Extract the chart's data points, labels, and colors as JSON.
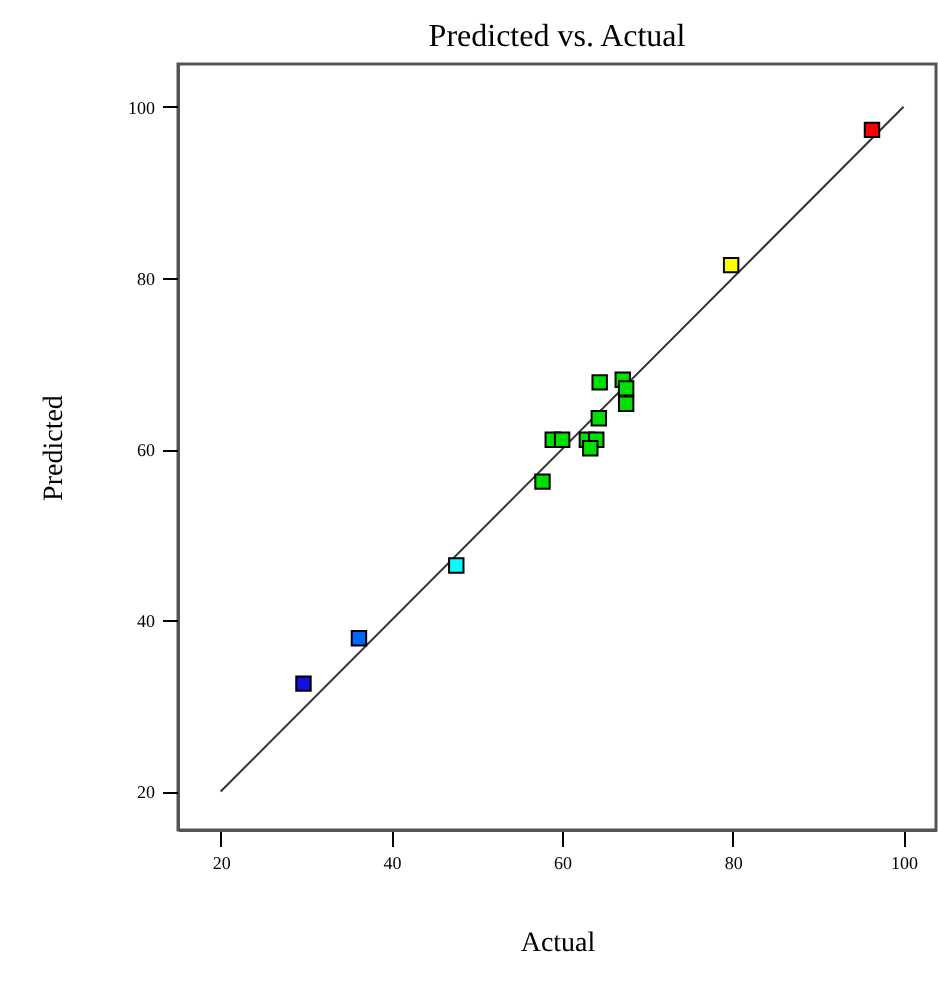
{
  "chart_data": {
    "type": "scatter",
    "title": "Predicted vs. Actual",
    "xlabel": "Actual",
    "ylabel": "Predicted",
    "xlim": [
      15,
      103.8
    ],
    "ylim": [
      15.5,
      105
    ],
    "xticks": [
      20,
      40,
      60,
      80,
      100
    ],
    "yticks": [
      20,
      40,
      60,
      80,
      100
    ],
    "grid": false,
    "series": [
      {
        "marker": "square",
        "x": [
          96.3,
          79.8,
          64.4,
          67.1,
          67.5,
          67.5,
          64.3,
          58.9,
          60.0,
          62.9,
          64.0,
          63.3,
          57.7,
          47.6,
          36.2,
          29.7
        ],
        "values": [
          97.3,
          81.5,
          67.8,
          68.1,
          67.1,
          65.3,
          63.6,
          61.1,
          61.1,
          61.1,
          61.1,
          60.1,
          56.2,
          46.4,
          37.9,
          32.6
        ],
        "colors": [
          "#ff0000",
          "#ffff00",
          "#00e000",
          "#00e000",
          "#00e000",
          "#00e000",
          "#00e000",
          "#00e000",
          "#00e000",
          "#00e000",
          "#00e000",
          "#00e000",
          "#00e000",
          "#00ffff",
          "#0066ff",
          "#1010e0"
        ]
      },
      {
        "type": "line",
        "x": [
          20,
          100
        ],
        "values": [
          20,
          100
        ],
        "color": "#333333",
        "line_style": "solid"
      }
    ]
  }
}
